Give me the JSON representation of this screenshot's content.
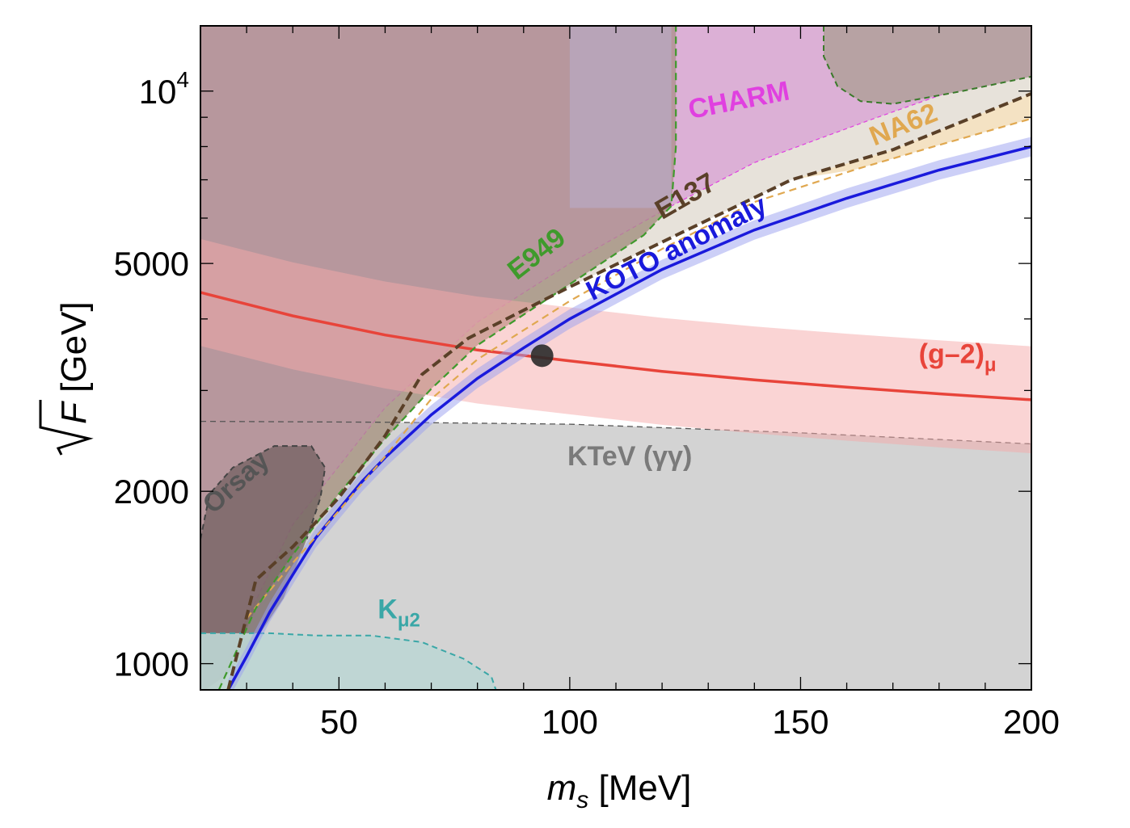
{
  "chart_data": {
    "type": "area",
    "xlabel": {
      "main": "m",
      "sub": "s",
      "unit": "[MeV]"
    },
    "ylabel": {
      "main": "F",
      "unit": "[GeV]",
      "radical": true
    },
    "x_scale": "linear",
    "y_scale": "log",
    "xlim": [
      20,
      200
    ],
    "ylim": [
      900,
      13000
    ],
    "x_ticks": [
      {
        "value": 50,
        "label": "50"
      },
      {
        "value": 100,
        "label": "100"
      },
      {
        "value": 150,
        "label": "150"
      },
      {
        "value": 200,
        "label": "200"
      }
    ],
    "y_ticks": [
      {
        "value": 1000,
        "label": "1000"
      },
      {
        "value": 2000,
        "label": "2000"
      },
      {
        "value": 5000,
        "label": "5000"
      },
      {
        "value": 10000,
        "label": "10",
        "sup": "4"
      }
    ],
    "grid": false,
    "legend": "none",
    "colors": {
      "koto": "#1a1adc",
      "g2": "#e8443a",
      "ktev": "#7a7a7a",
      "charm": "#e040e0",
      "e949": "#3f9a2c",
      "e137": "#5a4028",
      "na62": "#e0a850",
      "orsay": "#555555",
      "kmu2": "#3aa7a7"
    },
    "series": [
      {
        "name": "KOTO anomaly",
        "x": [
          26,
          30,
          35,
          40,
          45,
          50,
          55,
          60,
          70,
          80,
          90,
          100,
          120,
          140,
          160,
          180,
          200
        ],
        "y": [
          900,
          1030,
          1230,
          1430,
          1660,
          1860,
          2080,
          2290,
          2720,
          3150,
          3560,
          4000,
          4880,
          5720,
          6500,
          7280,
          8000
        ]
      },
      {
        "name": "(g-2)μ",
        "x": [
          20,
          40,
          60,
          80,
          100,
          120,
          140,
          160,
          180,
          200
        ],
        "y": [
          4450,
          4050,
          3750,
          3530,
          3380,
          3240,
          3130,
          3040,
          2960,
          2890
        ]
      },
      {
        "name": "E137",
        "x": [
          26,
          32,
          40,
          50,
          60,
          68,
          78,
          100,
          125,
          148,
          170,
          200
        ],
        "y": [
          900,
          1400,
          1600,
          1950,
          2500,
          3200,
          3700,
          4550,
          5700,
          7000,
          7900,
          9900
        ]
      },
      {
        "name": "E949",
        "x": [
          24,
          32,
          40,
          50,
          60,
          70,
          80,
          100,
          116,
          122,
          123,
          123
        ],
        "y": [
          900,
          1250,
          1550,
          1980,
          2470,
          3020,
          3600,
          4600,
          5600,
          6300,
          8000,
          13000
        ]
      },
      {
        "name": "NA62",
        "x": [
          30,
          40,
          50,
          60,
          70,
          80,
          100,
          120,
          140,
          162,
          180,
          200
        ],
        "y": [
          1200,
          1500,
          1850,
          2300,
          2900,
          3400,
          4300,
          5300,
          6400,
          7300,
          8050,
          8950
        ]
      },
      {
        "name": "KTeV (γγ)",
        "x": [
          20,
          60,
          100,
          150,
          200
        ],
        "y": [
          2650,
          2640,
          2620,
          2530,
          2420
        ]
      },
      {
        "name": "Orsay",
        "x": [
          20,
          22,
          27,
          36,
          44,
          47,
          46,
          43,
          38,
          32,
          26,
          21,
          20
        ],
        "y": [
          1650,
          1980,
          2200,
          2400,
          2400,
          2200,
          1950,
          1650,
          1300,
          1100,
          960,
          900,
          900
        ]
      },
      {
        "name": "Kμ2",
        "x": [
          20,
          35,
          45,
          57,
          68,
          77,
          83,
          84
        ],
        "y": [
          1130,
          1130,
          1120,
          1120,
          1090,
          1020,
          950,
          900
        ]
      }
    ],
    "marker": {
      "x": 94,
      "y": 3450
    },
    "annotations": [
      {
        "text": "CHARM",
        "x": 137,
        "y": 9300,
        "rotation": -11
      },
      {
        "text": "E949",
        "x": 94,
        "y": 5050,
        "rotation": -38
      },
      {
        "text": "E137",
        "x": 126,
        "y": 6350,
        "rotation": -30
      },
      {
        "text": "NA62",
        "x": 173,
        "y": 8450,
        "rotation": -22
      },
      {
        "text": "KOTO anomaly",
        "x": 124,
        "y": 5150,
        "rotation": -27
      },
      {
        "text": "(g–2)",
        "sub": "μ",
        "x": 184,
        "y": 3350,
        "rotation": 0
      },
      {
        "text": "KTeV (γγ)",
        "x": 113,
        "y": 2220,
        "rotation": 0
      },
      {
        "text": "Orsay",
        "x": 29,
        "y": 2020,
        "rotation": -42
      },
      {
        "text": "K",
        "sub": "μ2",
        "x": 63,
        "y": 1200,
        "rotation": 0
      }
    ]
  }
}
